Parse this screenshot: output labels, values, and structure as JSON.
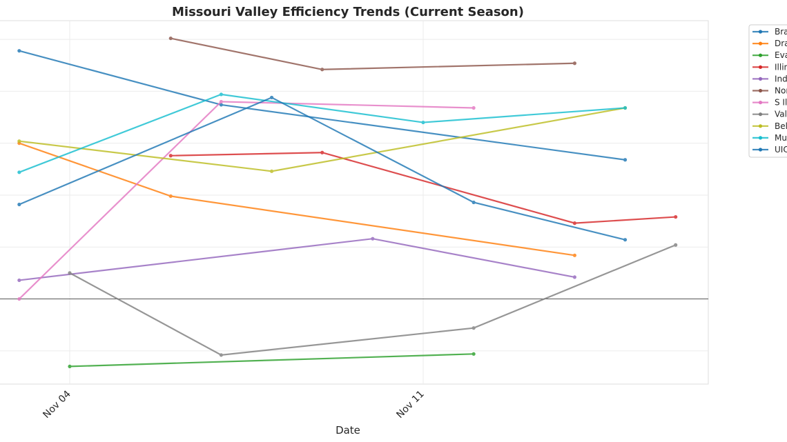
{
  "chart_data": {
    "type": "line",
    "title": "Missouri Valley Efficiency Trends (Current Season)",
    "xlabel": "Date",
    "ylabel": "",
    "x_ticks": [
      {
        "date": "11-04",
        "label": "Nov 04"
      },
      {
        "date": "11-11",
        "label": "Nov 11"
      }
    ],
    "xlim": [
      "11-02.4",
      "11-16.65"
    ],
    "ylim": [
      -8.2,
      26.8
    ],
    "grid": true,
    "zero_line": true,
    "legend_placement": "outside right (truncated)",
    "series": [
      {
        "name": "Bra",
        "color": "#1f77b4",
        "points": [
          [
            "11-03",
            23.9
          ],
          [
            "11-07",
            18.7
          ],
          [
            "11-15",
            13.4
          ]
        ]
      },
      {
        "name": "Dra",
        "color": "#ff7f0e",
        "points": [
          [
            "11-03",
            15.0
          ],
          [
            "11-06",
            9.9
          ],
          [
            "11-14",
            4.2
          ]
        ]
      },
      {
        "name": "Eva",
        "color": "#2ca02c",
        "points": [
          [
            "11-04",
            -6.5
          ],
          [
            "11-12",
            -5.3
          ]
        ]
      },
      {
        "name": "Illin",
        "color": "#d62728",
        "points": [
          [
            "11-06",
            13.8
          ],
          [
            "11-09",
            14.1
          ],
          [
            "11-14",
            7.3
          ],
          [
            "11-16",
            7.9
          ]
        ]
      },
      {
        "name": "Ind",
        "color": "#9467bd",
        "points": [
          [
            "11-03",
            1.8
          ],
          [
            "11-10",
            5.8
          ],
          [
            "11-14",
            2.1
          ]
        ]
      },
      {
        "name": "Nor",
        "color": "#8c564b",
        "points": [
          [
            "11-06",
            25.1
          ],
          [
            "11-09",
            22.1
          ],
          [
            "11-14",
            22.7
          ]
        ]
      },
      {
        "name": "S Il",
        "color": "#e377c2",
        "points": [
          [
            "11-03",
            0.0
          ],
          [
            "11-07",
            19.0
          ],
          [
            "11-12",
            18.4
          ]
        ]
      },
      {
        "name": "Val",
        "color": "#7f7f7f",
        "points": [
          [
            "11-04",
            2.5
          ],
          [
            "11-07",
            -5.4
          ],
          [
            "11-12",
            -2.8
          ],
          [
            "11-16",
            5.2
          ]
        ]
      },
      {
        "name": "Bel",
        "color": "#bcbd22",
        "points": [
          [
            "11-03",
            15.2
          ],
          [
            "11-08",
            12.3
          ],
          [
            "11-15",
            18.4
          ]
        ]
      },
      {
        "name": "Mu",
        "color": "#17becf",
        "points": [
          [
            "11-03",
            12.2
          ],
          [
            "11-07",
            19.7
          ],
          [
            "11-11",
            17.0
          ],
          [
            "11-15",
            18.4
          ]
        ]
      },
      {
        "name": "UIC",
        "color": "#1f77b4",
        "points": [
          [
            "11-03",
            9.1
          ],
          [
            "11-08",
            19.4
          ],
          [
            "11-12",
            9.3
          ],
          [
            "11-15",
            5.7
          ]
        ]
      }
    ]
  }
}
